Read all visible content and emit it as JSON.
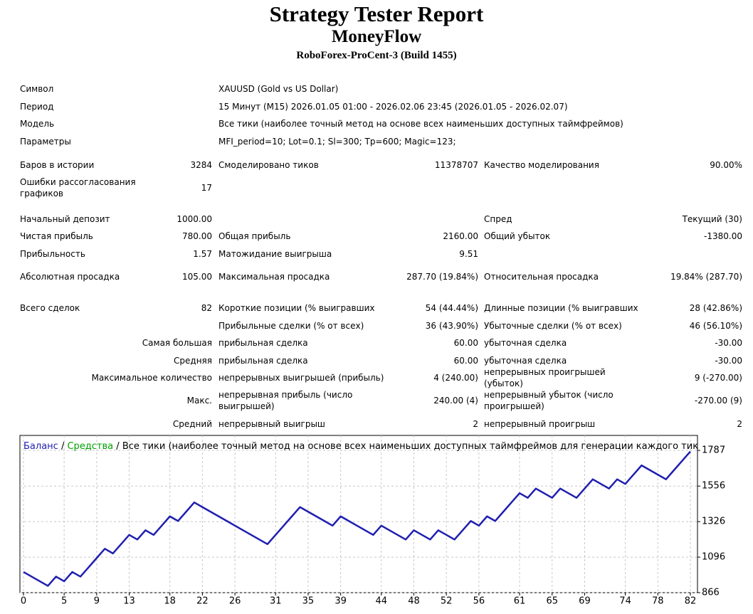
{
  "header": {
    "title": "Strategy Tester Report",
    "subtitle": "MoneyFlow",
    "build": "RoboForex-ProCent-3 (Build 1455)"
  },
  "report": {
    "rows": [
      [
        "Символ",
        "XAUUSD (Gold vs US Dollar)"
      ],
      [
        "Период",
        "15 Минут (M15) 2026.01.05 01:00 - 2026.02.06 23:45 (2026.01.05 - 2026.02.07)"
      ],
      [
        "Модель",
        "Все тики (наиболее точный метод на основе всех наименьших доступных таймфреймов)"
      ],
      [
        "Параметры",
        "MFI_period=10; Lot=0.1; Sl=300; Tp=600; Magic=123;"
      ],
      [
        "Баров в истории",
        "3284",
        "Смоделировано тиков",
        "11378707",
        "Качество моделирования",
        "90.00%"
      ],
      [
        "Ошибки рассогласования графиков",
        "17",
        null,
        null,
        null,
        null
      ],
      [
        "Начальный депозит",
        "1000.00",
        null,
        null,
        "Спред",
        "Текущий (30)"
      ],
      [
        "Чистая прибыль",
        "780.00",
        "Общая прибыль",
        "2160.00",
        "Общий убыток",
        "-1380.00"
      ],
      [
        "Прибыльность",
        "1.57",
        "Матожидание выигрыша",
        "9.51",
        null,
        null
      ],
      [
        "Абсолютная просадка",
        "105.00",
        "Максимальная просадка",
        "287.70 (19.84%)",
        "Относительная просадка",
        "19.84% (287.70)"
      ],
      [
        "Всего сделок",
        "82",
        "Короткие позиции (% выигравших",
        "54 (44.44%)",
        "Длинные позиции (% выигравших",
        "28 (42.86%)"
      ],
      [
        null,
        null,
        "Прибыльные сделки (% от всех)",
        "36 (43.90%)",
        "Убыточные сделки (% от всех)",
        "46 (56.10%)"
      ],
      [
        null,
        "Самая большая",
        "прибыльная сделка",
        "60.00",
        "убыточная сделка",
        "-30.00"
      ],
      [
        null,
        "Средняя",
        "прибыльная сделка",
        "60.00",
        "убыточная сделка",
        "-30.00"
      ],
      [
        null,
        "Максимальное количество",
        "непрерывных выигрышей (прибыль)",
        "4 (240.00)",
        "непрерывных проигрышей (убыток)",
        "9 (-270.00)"
      ],
      [
        null,
        "Макс.",
        "непрерывная прибыль (число выигрышей)",
        "240.00 (4)",
        "непрерывный убыток (число проигрышей)",
        "-270.00 (9)"
      ],
      [
        null,
        "Средний",
        "непрерывный выигрыш",
        "2",
        "непрерывный проигрыш",
        "2"
      ]
    ]
  },
  "chart_data": {
    "type": "line",
    "legend": [
      {
        "name": "Баланс",
        "color": "#1f1fb0"
      },
      {
        "name": "Средства",
        "color": "#00a000"
      }
    ],
    "legend_separator": "/",
    "model_text": "Все тики (наиболее точный метод на основе всех наименьших доступных таймфреймов для генерации каждого тика)",
    "x": [
      0,
      1,
      2,
      3,
      4,
      5,
      6,
      7,
      8,
      9,
      10,
      11,
      12,
      13,
      14,
      15,
      16,
      17,
      18,
      19,
      20,
      21,
      22,
      23,
      24,
      25,
      26,
      27,
      28,
      29,
      30,
      31,
      32,
      33,
      34,
      35,
      36,
      37,
      38,
      39,
      40,
      41,
      42,
      43,
      44,
      45,
      46,
      47,
      48,
      49,
      50,
      51,
      52,
      53,
      54,
      55,
      56,
      57,
      58,
      59,
      60,
      61,
      62,
      63,
      64,
      65,
      66,
      67,
      68,
      69,
      70,
      71,
      72,
      73,
      74,
      75,
      76,
      77,
      78,
      79,
      80,
      81,
      82
    ],
    "series": [
      {
        "color": "#1f1fb0",
        "values": [
          1000,
          970,
          940,
          910,
          970,
          940,
          1000,
          970,
          1030,
          1090,
          1150,
          1120,
          1180,
          1240,
          1210,
          1270,
          1240,
          1300,
          1360,
          1330,
          1390,
          1450,
          1420,
          1390,
          1360,
          1330,
          1300,
          1270,
          1240,
          1210,
          1180,
          1240,
          1300,
          1360,
          1420,
          1390,
          1360,
          1330,
          1300,
          1360,
          1330,
          1300,
          1270,
          1240,
          1300,
          1270,
          1240,
          1210,
          1270,
          1240,
          1210,
          1270,
          1240,
          1210,
          1270,
          1330,
          1300,
          1360,
          1330,
          1390,
          1450,
          1510,
          1480,
          1540,
          1510,
          1480,
          1540,
          1510,
          1480,
          1540,
          1600,
          1570,
          1540,
          1600,
          1570,
          1630,
          1690,
          1660,
          1630,
          1600,
          1660,
          1720,
          1780
        ]
      }
    ],
    "xlim": [
      0,
      82
    ],
    "xticks": [
      0,
      5,
      9,
      13,
      18,
      22,
      26,
      31,
      35,
      39,
      44,
      48,
      52,
      56,
      61,
      65,
      69,
      74,
      78,
      82
    ],
    "ylim": [
      866,
      1884
    ],
    "yticks": [
      866,
      1096,
      1326,
      1556,
      1787
    ],
    "grid": true
  }
}
